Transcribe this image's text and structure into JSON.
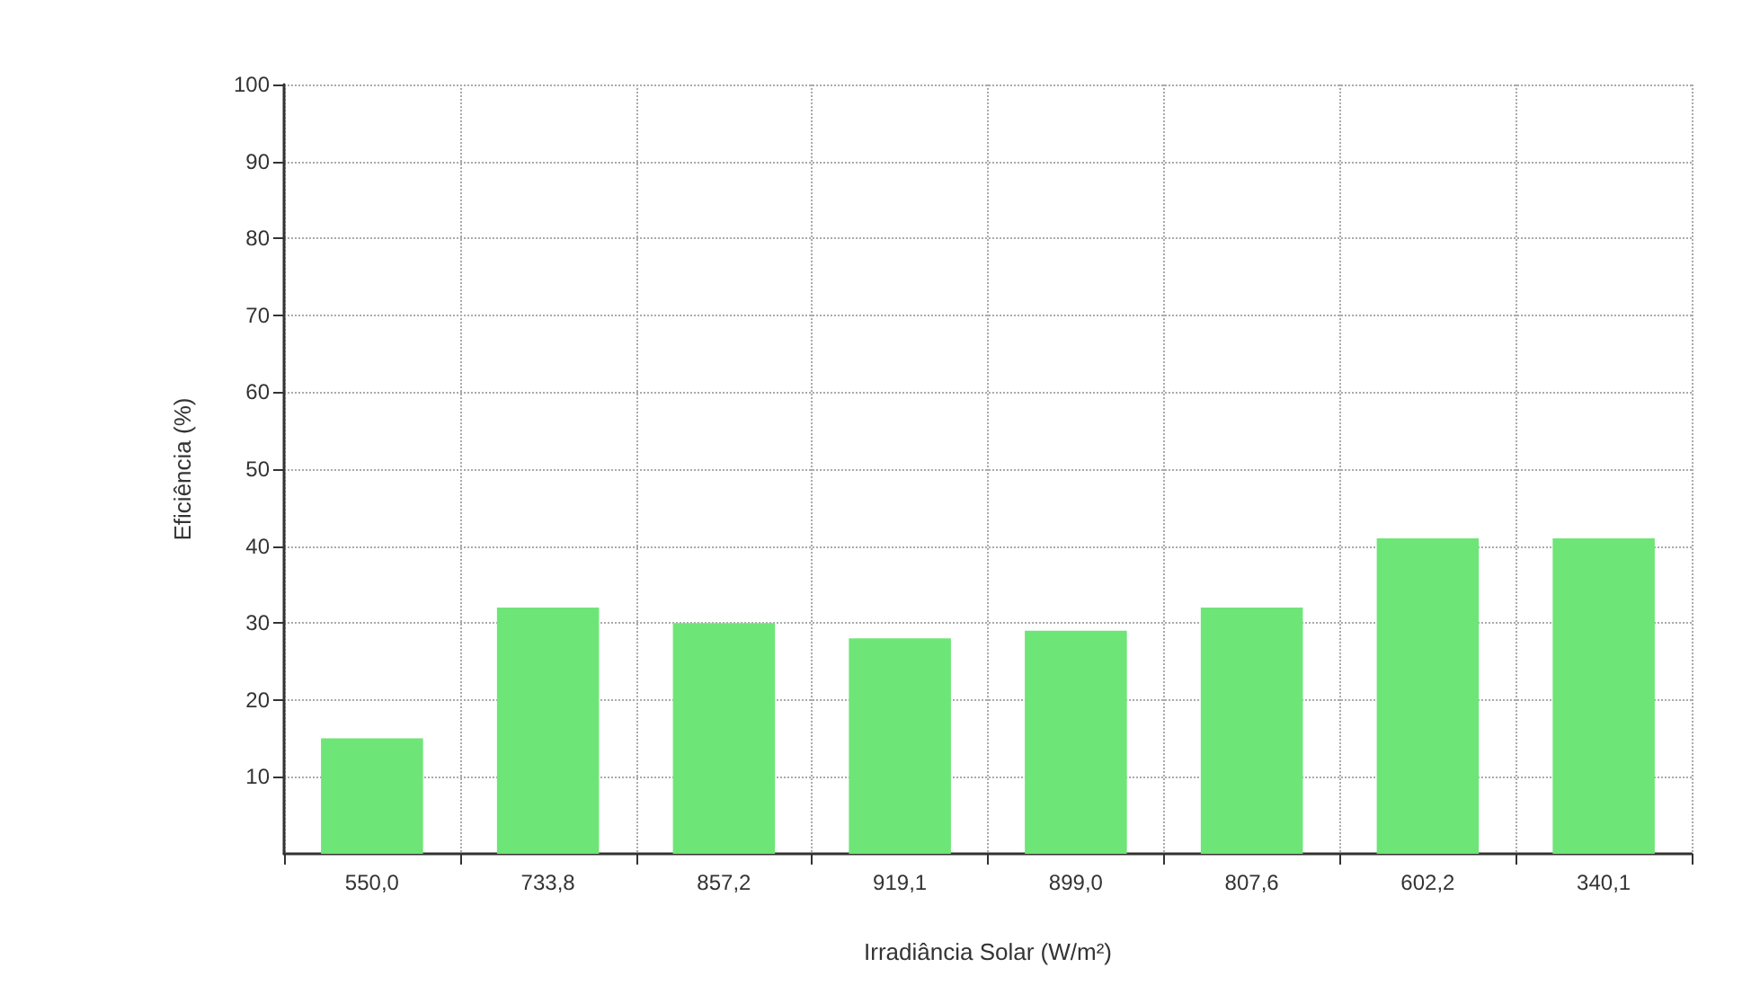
{
  "chart_data": {
    "type": "bar",
    "xlabel": "Irradiância Solar (W/m²)",
    "ylabel": "Eficiência (%)",
    "categories": [
      "550,0",
      "733,8",
      "857,2",
      "919,1",
      "899,0",
      "807,6",
      "602,2",
      "340,1"
    ],
    "values": [
      15,
      32,
      30,
      28,
      29,
      32,
      41,
      41
    ],
    "color": "#6ee577",
    "ylim": [
      0,
      100
    ],
    "yticks": [
      10,
      20,
      30,
      40,
      50,
      60,
      70,
      80,
      90,
      100
    ],
    "grid": true
  }
}
